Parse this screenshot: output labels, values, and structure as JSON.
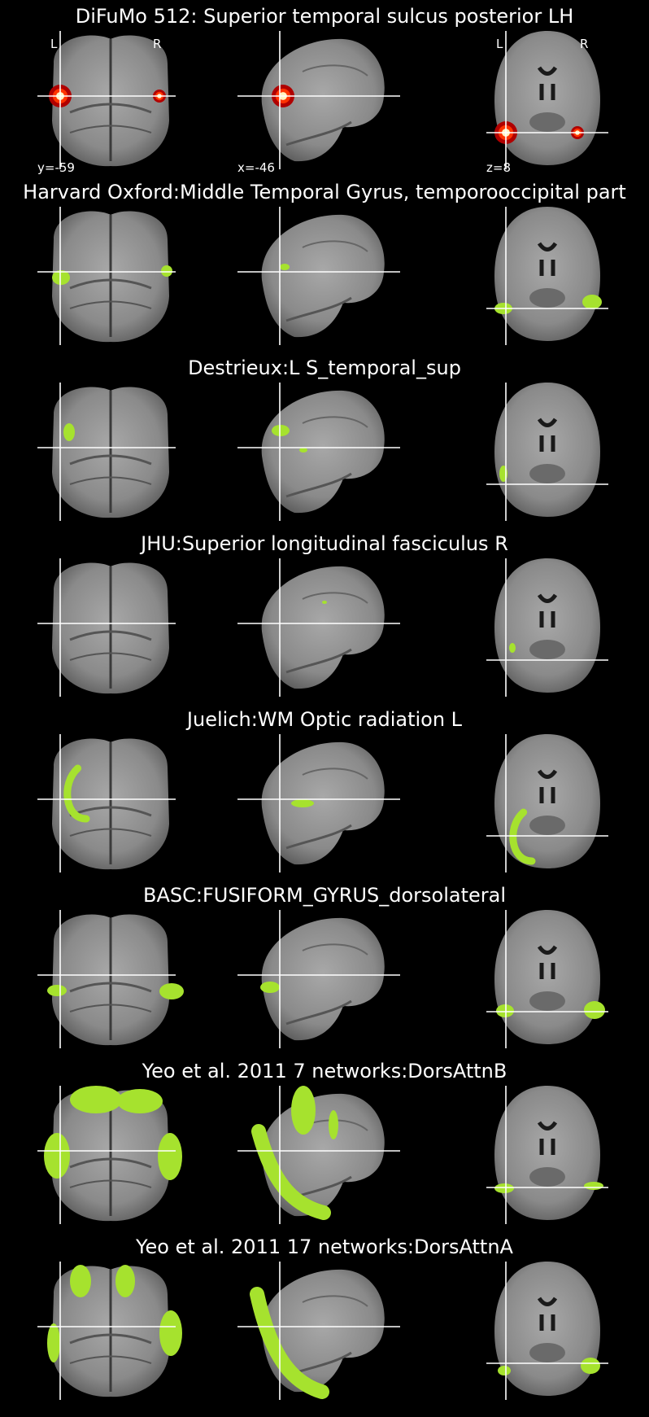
{
  "figure": {
    "orientation_labels": {
      "left": "L",
      "right": "R"
    },
    "cut_coords": {
      "coronal": "y=-59",
      "sagittal": "x=-46",
      "axial": "z=8"
    },
    "colors": {
      "background": "#000000",
      "overlay": "#a6e22e",
      "crosshair": "#ffffff",
      "heat": "#ff3300"
    }
  },
  "panels": [
    {
      "title": "DiFuMo 512: Superior temporal sulcus posterior LH",
      "map": "heat"
    },
    {
      "title": "Harvard Oxford:Middle Temporal Gyrus, temporooccipital part",
      "map": "green"
    },
    {
      "title": "Destrieux:L S_temporal_sup",
      "map": "green"
    },
    {
      "title": "JHU:Superior longitudinal fasciculus R",
      "map": "green"
    },
    {
      "title": "Juelich:WM Optic radiation L",
      "map": "green"
    },
    {
      "title": "BASC:FUSIFORM_GYRUS_dorsolateral",
      "map": "green"
    },
    {
      "title": "Yeo et al. 2011 7 networks:DorsAttnB",
      "map": "green"
    },
    {
      "title": "Yeo et al. 2011 17 networks:DorsAttnA",
      "map": "green"
    }
  ]
}
